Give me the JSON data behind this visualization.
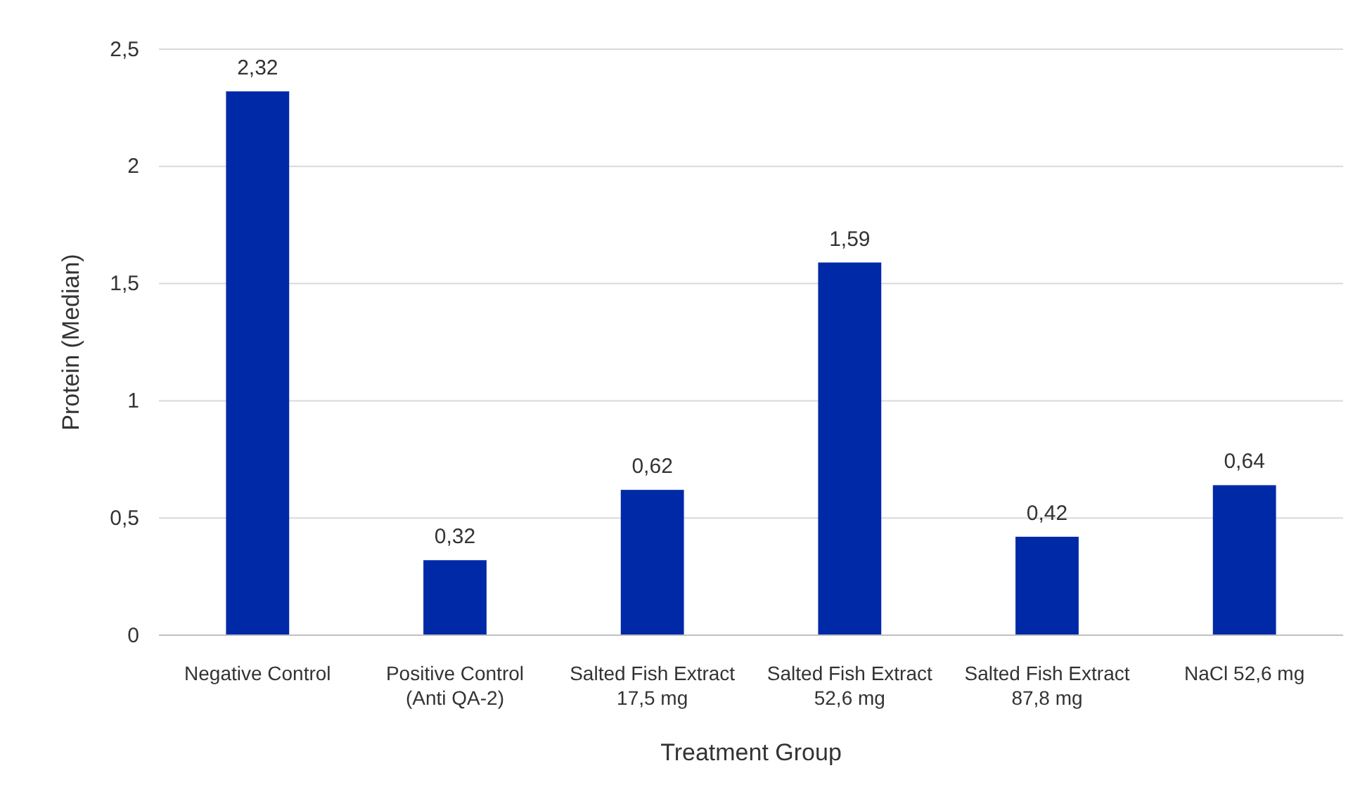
{
  "chart_data": {
    "type": "bar",
    "xlabel": "Treatment Group",
    "ylabel": "Protein (Median)",
    "categories": [
      "Negative Control",
      "Positive Control (Anti QA-2)",
      "Salted Fish Extract 17,5 mg",
      "Salted Fish Extract 52,6 mg",
      "Salted Fish Extract 87,8 mg",
      "NaCl 52,6 mg"
    ],
    "values": [
      2.32,
      0.32,
      0.62,
      1.59,
      0.42,
      0.64
    ],
    "value_labels": [
      "2,32",
      "0,32",
      "0,62",
      "1,59",
      "0,42",
      "0,64"
    ],
    "color": "#0029a8",
    "ylim": [
      0,
      2.5
    ],
    "yticks": [
      0,
      {
        "value": 0.5,
        "label": "0,5"
      },
      1,
      {
        "value": 1.5,
        "label": "1,5"
      },
      2,
      {
        "value": 2.5,
        "label": "2,5"
      }
    ],
    "grid": "y"
  }
}
